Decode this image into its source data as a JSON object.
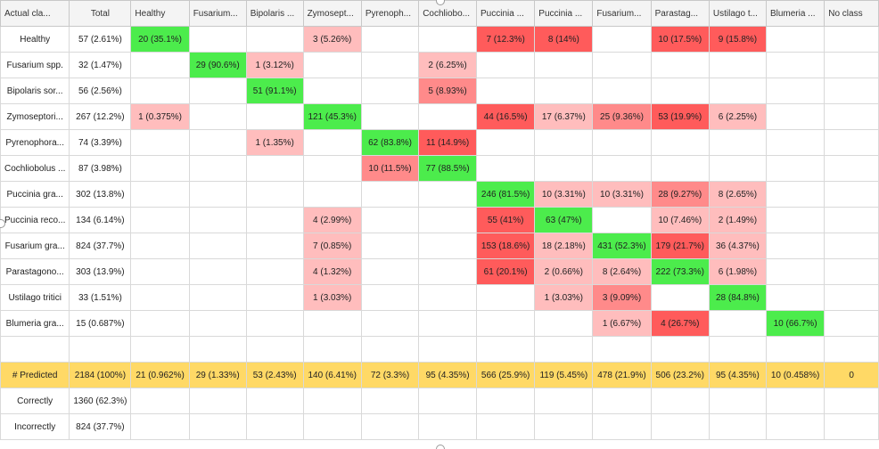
{
  "colors": {
    "diag": "#4cec4c",
    "bad_strong": "#ff5b5b",
    "bad_medium": "#ff8a8a",
    "bad_light": "#ffbdbd",
    "predicted_row": "#ffd966",
    "header_bg": "#f4f4f4"
  },
  "header": {
    "corner": "Actual cla...",
    "total": "Total",
    "columns": [
      "Healthy",
      "Fusarium...",
      "Bipolaris ...",
      "Zymosept...",
      "Pyrenoph...",
      "Cochliobo...",
      "Puccinia ...",
      "Puccinia ...",
      "Fusarium...",
      "Parastag...",
      "Ustilago t...",
      "Blumeria ...",
      "No class"
    ]
  },
  "rows": [
    {
      "label": "Healthy",
      "total": "57 (2.61%)",
      "cells": [
        {
          "text": "20 (35.1%)",
          "tone": "diag"
        },
        {
          "text": "",
          "tone": ""
        },
        {
          "text": "",
          "tone": ""
        },
        {
          "text": "3 (5.26%)",
          "tone": "light"
        },
        {
          "text": "",
          "tone": ""
        },
        {
          "text": "",
          "tone": ""
        },
        {
          "text": "7 (12.3%)",
          "tone": "strong"
        },
        {
          "text": "8 (14%)",
          "tone": "strong"
        },
        {
          "text": "",
          "tone": ""
        },
        {
          "text": "10 (17.5%)",
          "tone": "strong"
        },
        {
          "text": "9 (15.8%)",
          "tone": "strong"
        },
        {
          "text": "",
          "tone": ""
        },
        {
          "text": "",
          "tone": ""
        }
      ]
    },
    {
      "label": "Fusarium spp.",
      "total": "32 (1.47%)",
      "cells": [
        {
          "text": "",
          "tone": ""
        },
        {
          "text": "29 (90.6%)",
          "tone": "diag"
        },
        {
          "text": "1 (3.12%)",
          "tone": "light"
        },
        {
          "text": "",
          "tone": ""
        },
        {
          "text": "",
          "tone": ""
        },
        {
          "text": "2 (6.25%)",
          "tone": "light"
        },
        {
          "text": "",
          "tone": ""
        },
        {
          "text": "",
          "tone": ""
        },
        {
          "text": "",
          "tone": ""
        },
        {
          "text": "",
          "tone": ""
        },
        {
          "text": "",
          "tone": ""
        },
        {
          "text": "",
          "tone": ""
        },
        {
          "text": "",
          "tone": ""
        }
      ]
    },
    {
      "label": "Bipolaris sor...",
      "total": "56 (2.56%)",
      "cells": [
        {
          "text": "",
          "tone": ""
        },
        {
          "text": "",
          "tone": ""
        },
        {
          "text": "51 (91.1%)",
          "tone": "diag"
        },
        {
          "text": "",
          "tone": ""
        },
        {
          "text": "",
          "tone": ""
        },
        {
          "text": "5 (8.93%)",
          "tone": "medium"
        },
        {
          "text": "",
          "tone": ""
        },
        {
          "text": "",
          "tone": ""
        },
        {
          "text": "",
          "tone": ""
        },
        {
          "text": "",
          "tone": ""
        },
        {
          "text": "",
          "tone": ""
        },
        {
          "text": "",
          "tone": ""
        },
        {
          "text": "",
          "tone": ""
        }
      ]
    },
    {
      "label": "Zymoseptori...",
      "total": "267 (12.2%)",
      "cells": [
        {
          "text": "1 (0.375%)",
          "tone": "light"
        },
        {
          "text": "",
          "tone": ""
        },
        {
          "text": "",
          "tone": ""
        },
        {
          "text": "121 (45.3%)",
          "tone": "diag"
        },
        {
          "text": "",
          "tone": ""
        },
        {
          "text": "",
          "tone": ""
        },
        {
          "text": "44 (16.5%)",
          "tone": "strong"
        },
        {
          "text": "17 (6.37%)",
          "tone": "light"
        },
        {
          "text": "25 (9.36%)",
          "tone": "medium"
        },
        {
          "text": "53 (19.9%)",
          "tone": "strong"
        },
        {
          "text": "6 (2.25%)",
          "tone": "light"
        },
        {
          "text": "",
          "tone": ""
        },
        {
          "text": "",
          "tone": ""
        }
      ]
    },
    {
      "label": "Pyrenophora...",
      "total": "74 (3.39%)",
      "cells": [
        {
          "text": "",
          "tone": ""
        },
        {
          "text": "",
          "tone": ""
        },
        {
          "text": "1 (1.35%)",
          "tone": "light"
        },
        {
          "text": "",
          "tone": ""
        },
        {
          "text": "62 (83.8%)",
          "tone": "diag"
        },
        {
          "text": "11 (14.9%)",
          "tone": "strong"
        },
        {
          "text": "",
          "tone": ""
        },
        {
          "text": "",
          "tone": ""
        },
        {
          "text": "",
          "tone": ""
        },
        {
          "text": "",
          "tone": ""
        },
        {
          "text": "",
          "tone": ""
        },
        {
          "text": "",
          "tone": ""
        },
        {
          "text": "",
          "tone": ""
        }
      ]
    },
    {
      "label": "Cochliobolus ...",
      "total": "87 (3.98%)",
      "cells": [
        {
          "text": "",
          "tone": ""
        },
        {
          "text": "",
          "tone": ""
        },
        {
          "text": "",
          "tone": ""
        },
        {
          "text": "",
          "tone": ""
        },
        {
          "text": "10 (11.5%)",
          "tone": "medium"
        },
        {
          "text": "77 (88.5%)",
          "tone": "diag"
        },
        {
          "text": "",
          "tone": ""
        },
        {
          "text": "",
          "tone": ""
        },
        {
          "text": "",
          "tone": ""
        },
        {
          "text": "",
          "tone": ""
        },
        {
          "text": "",
          "tone": ""
        },
        {
          "text": "",
          "tone": ""
        },
        {
          "text": "",
          "tone": ""
        }
      ]
    },
    {
      "label": "Puccinia gra...",
      "total": "302 (13.8%)",
      "cells": [
        {
          "text": "",
          "tone": ""
        },
        {
          "text": "",
          "tone": ""
        },
        {
          "text": "",
          "tone": ""
        },
        {
          "text": "",
          "tone": ""
        },
        {
          "text": "",
          "tone": ""
        },
        {
          "text": "",
          "tone": ""
        },
        {
          "text": "246 (81.5%)",
          "tone": "diag"
        },
        {
          "text": "10 (3.31%)",
          "tone": "light"
        },
        {
          "text": "10 (3.31%)",
          "tone": "light"
        },
        {
          "text": "28 (9.27%)",
          "tone": "medium"
        },
        {
          "text": "8 (2.65%)",
          "tone": "light"
        },
        {
          "text": "",
          "tone": ""
        },
        {
          "text": "",
          "tone": ""
        }
      ]
    },
    {
      "label": "Puccinia reco...",
      "total": "134 (6.14%)",
      "cells": [
        {
          "text": "",
          "tone": ""
        },
        {
          "text": "",
          "tone": ""
        },
        {
          "text": "",
          "tone": ""
        },
        {
          "text": "4 (2.99%)",
          "tone": "light"
        },
        {
          "text": "",
          "tone": ""
        },
        {
          "text": "",
          "tone": ""
        },
        {
          "text": "55 (41%)",
          "tone": "strong"
        },
        {
          "text": "63 (47%)",
          "tone": "diag"
        },
        {
          "text": "",
          "tone": ""
        },
        {
          "text": "10 (7.46%)",
          "tone": "light"
        },
        {
          "text": "2 (1.49%)",
          "tone": "light"
        },
        {
          "text": "",
          "tone": ""
        },
        {
          "text": "",
          "tone": ""
        }
      ]
    },
    {
      "label": "Fusarium gra...",
      "total": "824 (37.7%)",
      "cells": [
        {
          "text": "",
          "tone": ""
        },
        {
          "text": "",
          "tone": ""
        },
        {
          "text": "",
          "tone": ""
        },
        {
          "text": "7 (0.85%)",
          "tone": "light"
        },
        {
          "text": "",
          "tone": ""
        },
        {
          "text": "",
          "tone": ""
        },
        {
          "text": "153 (18.6%)",
          "tone": "strong"
        },
        {
          "text": "18 (2.18%)",
          "tone": "light"
        },
        {
          "text": "431 (52.3%)",
          "tone": "diag"
        },
        {
          "text": "179 (21.7%)",
          "tone": "strong"
        },
        {
          "text": "36 (4.37%)",
          "tone": "light"
        },
        {
          "text": "",
          "tone": ""
        },
        {
          "text": "",
          "tone": ""
        }
      ]
    },
    {
      "label": "Parastagono...",
      "total": "303 (13.9%)",
      "cells": [
        {
          "text": "",
          "tone": ""
        },
        {
          "text": "",
          "tone": ""
        },
        {
          "text": "",
          "tone": ""
        },
        {
          "text": "4 (1.32%)",
          "tone": "light"
        },
        {
          "text": "",
          "tone": ""
        },
        {
          "text": "",
          "tone": ""
        },
        {
          "text": "61 (20.1%)",
          "tone": "strong"
        },
        {
          "text": "2 (0.66%)",
          "tone": "light"
        },
        {
          "text": "8 (2.64%)",
          "tone": "light"
        },
        {
          "text": "222 (73.3%)",
          "tone": "diag"
        },
        {
          "text": "6 (1.98%)",
          "tone": "light"
        },
        {
          "text": "",
          "tone": ""
        },
        {
          "text": "",
          "tone": ""
        }
      ]
    },
    {
      "label": "Ustilago tritici",
      "total": "33 (1.51%)",
      "cells": [
        {
          "text": "",
          "tone": ""
        },
        {
          "text": "",
          "tone": ""
        },
        {
          "text": "",
          "tone": ""
        },
        {
          "text": "1 (3.03%)",
          "tone": "light"
        },
        {
          "text": "",
          "tone": ""
        },
        {
          "text": "",
          "tone": ""
        },
        {
          "text": "",
          "tone": ""
        },
        {
          "text": "1 (3.03%)",
          "tone": "light"
        },
        {
          "text": "3 (9.09%)",
          "tone": "medium"
        },
        {
          "text": "",
          "tone": ""
        },
        {
          "text": "28 (84.8%)",
          "tone": "diag"
        },
        {
          "text": "",
          "tone": ""
        },
        {
          "text": "",
          "tone": ""
        }
      ]
    },
    {
      "label": "Blumeria gra...",
      "total": "15 (0.687%)",
      "cells": [
        {
          "text": "",
          "tone": ""
        },
        {
          "text": "",
          "tone": ""
        },
        {
          "text": "",
          "tone": ""
        },
        {
          "text": "",
          "tone": ""
        },
        {
          "text": "",
          "tone": ""
        },
        {
          "text": "",
          "tone": ""
        },
        {
          "text": "",
          "tone": ""
        },
        {
          "text": "",
          "tone": ""
        },
        {
          "text": "1 (6.67%)",
          "tone": "light"
        },
        {
          "text": "4 (26.7%)",
          "tone": "strong"
        },
        {
          "text": "",
          "tone": ""
        },
        {
          "text": "10 (66.7%)",
          "tone": "diag"
        },
        {
          "text": "",
          "tone": ""
        }
      ]
    }
  ],
  "predicted": {
    "label": "# Predicted",
    "total": "2184 (100%)",
    "cells": [
      "21 (0.962%)",
      "29 (1.33%)",
      "53 (2.43%)",
      "140 (6.41%)",
      "72 (3.3%)",
      "95 (4.35%)",
      "566 (25.9%)",
      "119 (5.45%)",
      "478 (21.9%)",
      "506 (23.2%)",
      "95 (4.35%)",
      "10 (0.458%)",
      "0"
    ]
  },
  "summary": [
    {
      "label": "Correctly",
      "value": "1360 (62.3%)"
    },
    {
      "label": "Incorrectly",
      "value": "824 (37.7%)"
    }
  ]
}
